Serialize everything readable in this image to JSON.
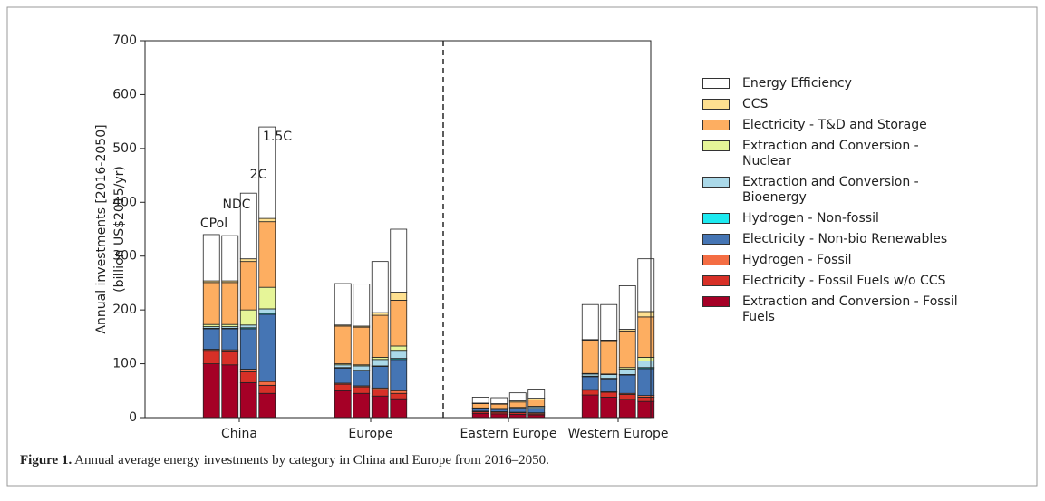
{
  "chart_data": {
    "type": "grouped-stacked-bar",
    "ylabel": [
      "Annual investments [2016-2050]",
      "(billion US$2015/yr)"
    ],
    "categories": [
      "China",
      "Europe",
      "Eastern Europe",
      "Western Europe"
    ],
    "scenarios": [
      "CPol",
      "NDC",
      "2C",
      "1.5C"
    ],
    "ylim": [
      0,
      700
    ],
    "yticks": [
      0,
      100,
      200,
      300,
      400,
      500,
      600,
      700
    ],
    "series": [
      {
        "name": "Extraction and Conversion - Fossil Fuels",
        "color": "#a50026",
        "values": [
          [
            100,
            98,
            65,
            45
          ],
          [
            50,
            45,
            40,
            35
          ],
          [
            8,
            7,
            6,
            5
          ],
          [
            42,
            38,
            34,
            30
          ]
        ]
      },
      {
        "name": "Electricity - Fossil Fuels w/o CCS",
        "color": "#d73027",
        "values": [
          [
            25,
            26,
            20,
            15
          ],
          [
            12,
            12,
            12,
            10
          ],
          [
            3,
            3,
            3,
            2
          ],
          [
            9,
            9,
            9,
            8
          ]
        ]
      },
      {
        "name": "Hydrogen - Fossil",
        "color": "#f46d43",
        "values": [
          [
            2,
            2,
            5,
            7
          ],
          [
            2,
            2,
            3,
            5
          ],
          [
            1,
            1,
            1,
            2
          ],
          [
            1,
            1,
            2,
            3
          ]
        ]
      },
      {
        "name": "Electricity - Non-bio Renewables",
        "color": "#4575b4",
        "values": [
          [
            38,
            39,
            75,
            125
          ],
          [
            28,
            28,
            40,
            58
          ],
          [
            4,
            4,
            6,
            8
          ],
          [
            24,
            24,
            34,
            50
          ]
        ]
      },
      {
        "name": "Hydrogen - Non-fossil",
        "color": "#1de9f0",
        "values": [
          [
            1,
            1,
            2,
            2
          ],
          [
            1,
            1,
            1,
            2
          ],
          [
            0,
            0,
            0,
            0
          ],
          [
            1,
            1,
            1,
            2
          ]
        ]
      },
      {
        "name": "Extraction and Conversion - Bioenergy",
        "color": "#abd9e9",
        "values": [
          [
            3,
            3,
            5,
            8
          ],
          [
            5,
            8,
            12,
            15
          ],
          [
            1,
            1,
            2,
            3
          ],
          [
            4,
            7,
            10,
            12
          ]
        ]
      },
      {
        "name": "Extraction and Conversion - Nuclear",
        "color": "#e6f598",
        "values": [
          [
            4,
            4,
            28,
            40
          ],
          [
            2,
            2,
            4,
            8
          ],
          [
            1,
            1,
            1,
            1
          ],
          [
            1,
            1,
            3,
            7
          ]
        ]
      },
      {
        "name": "Electricity - T&D and Storage",
        "color": "#fdae61",
        "values": [
          [
            78,
            78,
            90,
            122
          ],
          [
            70,
            70,
            78,
            85
          ],
          [
            8,
            8,
            10,
            12
          ],
          [
            62,
            62,
            68,
            75
          ]
        ]
      },
      {
        "name": "CCS",
        "color": "#fee090",
        "values": [
          [
            3,
            3,
            5,
            6
          ],
          [
            2,
            2,
            5,
            15
          ],
          [
            1,
            1,
            2,
            3
          ],
          [
            1,
            1,
            3,
            10
          ]
        ]
      },
      {
        "name": "Energy Efficiency",
        "color": "#ffffff",
        "values": [
          [
            86,
            84,
            122,
            170
          ],
          [
            77,
            78,
            95,
            117
          ],
          [
            11,
            11,
            15,
            17
          ],
          [
            65,
            66,
            81,
            98
          ]
        ]
      }
    ]
  },
  "caption": {
    "label": "Figure 1.",
    "text": "Annual average energy investments by category in China and Europe from 2016–2050."
  }
}
